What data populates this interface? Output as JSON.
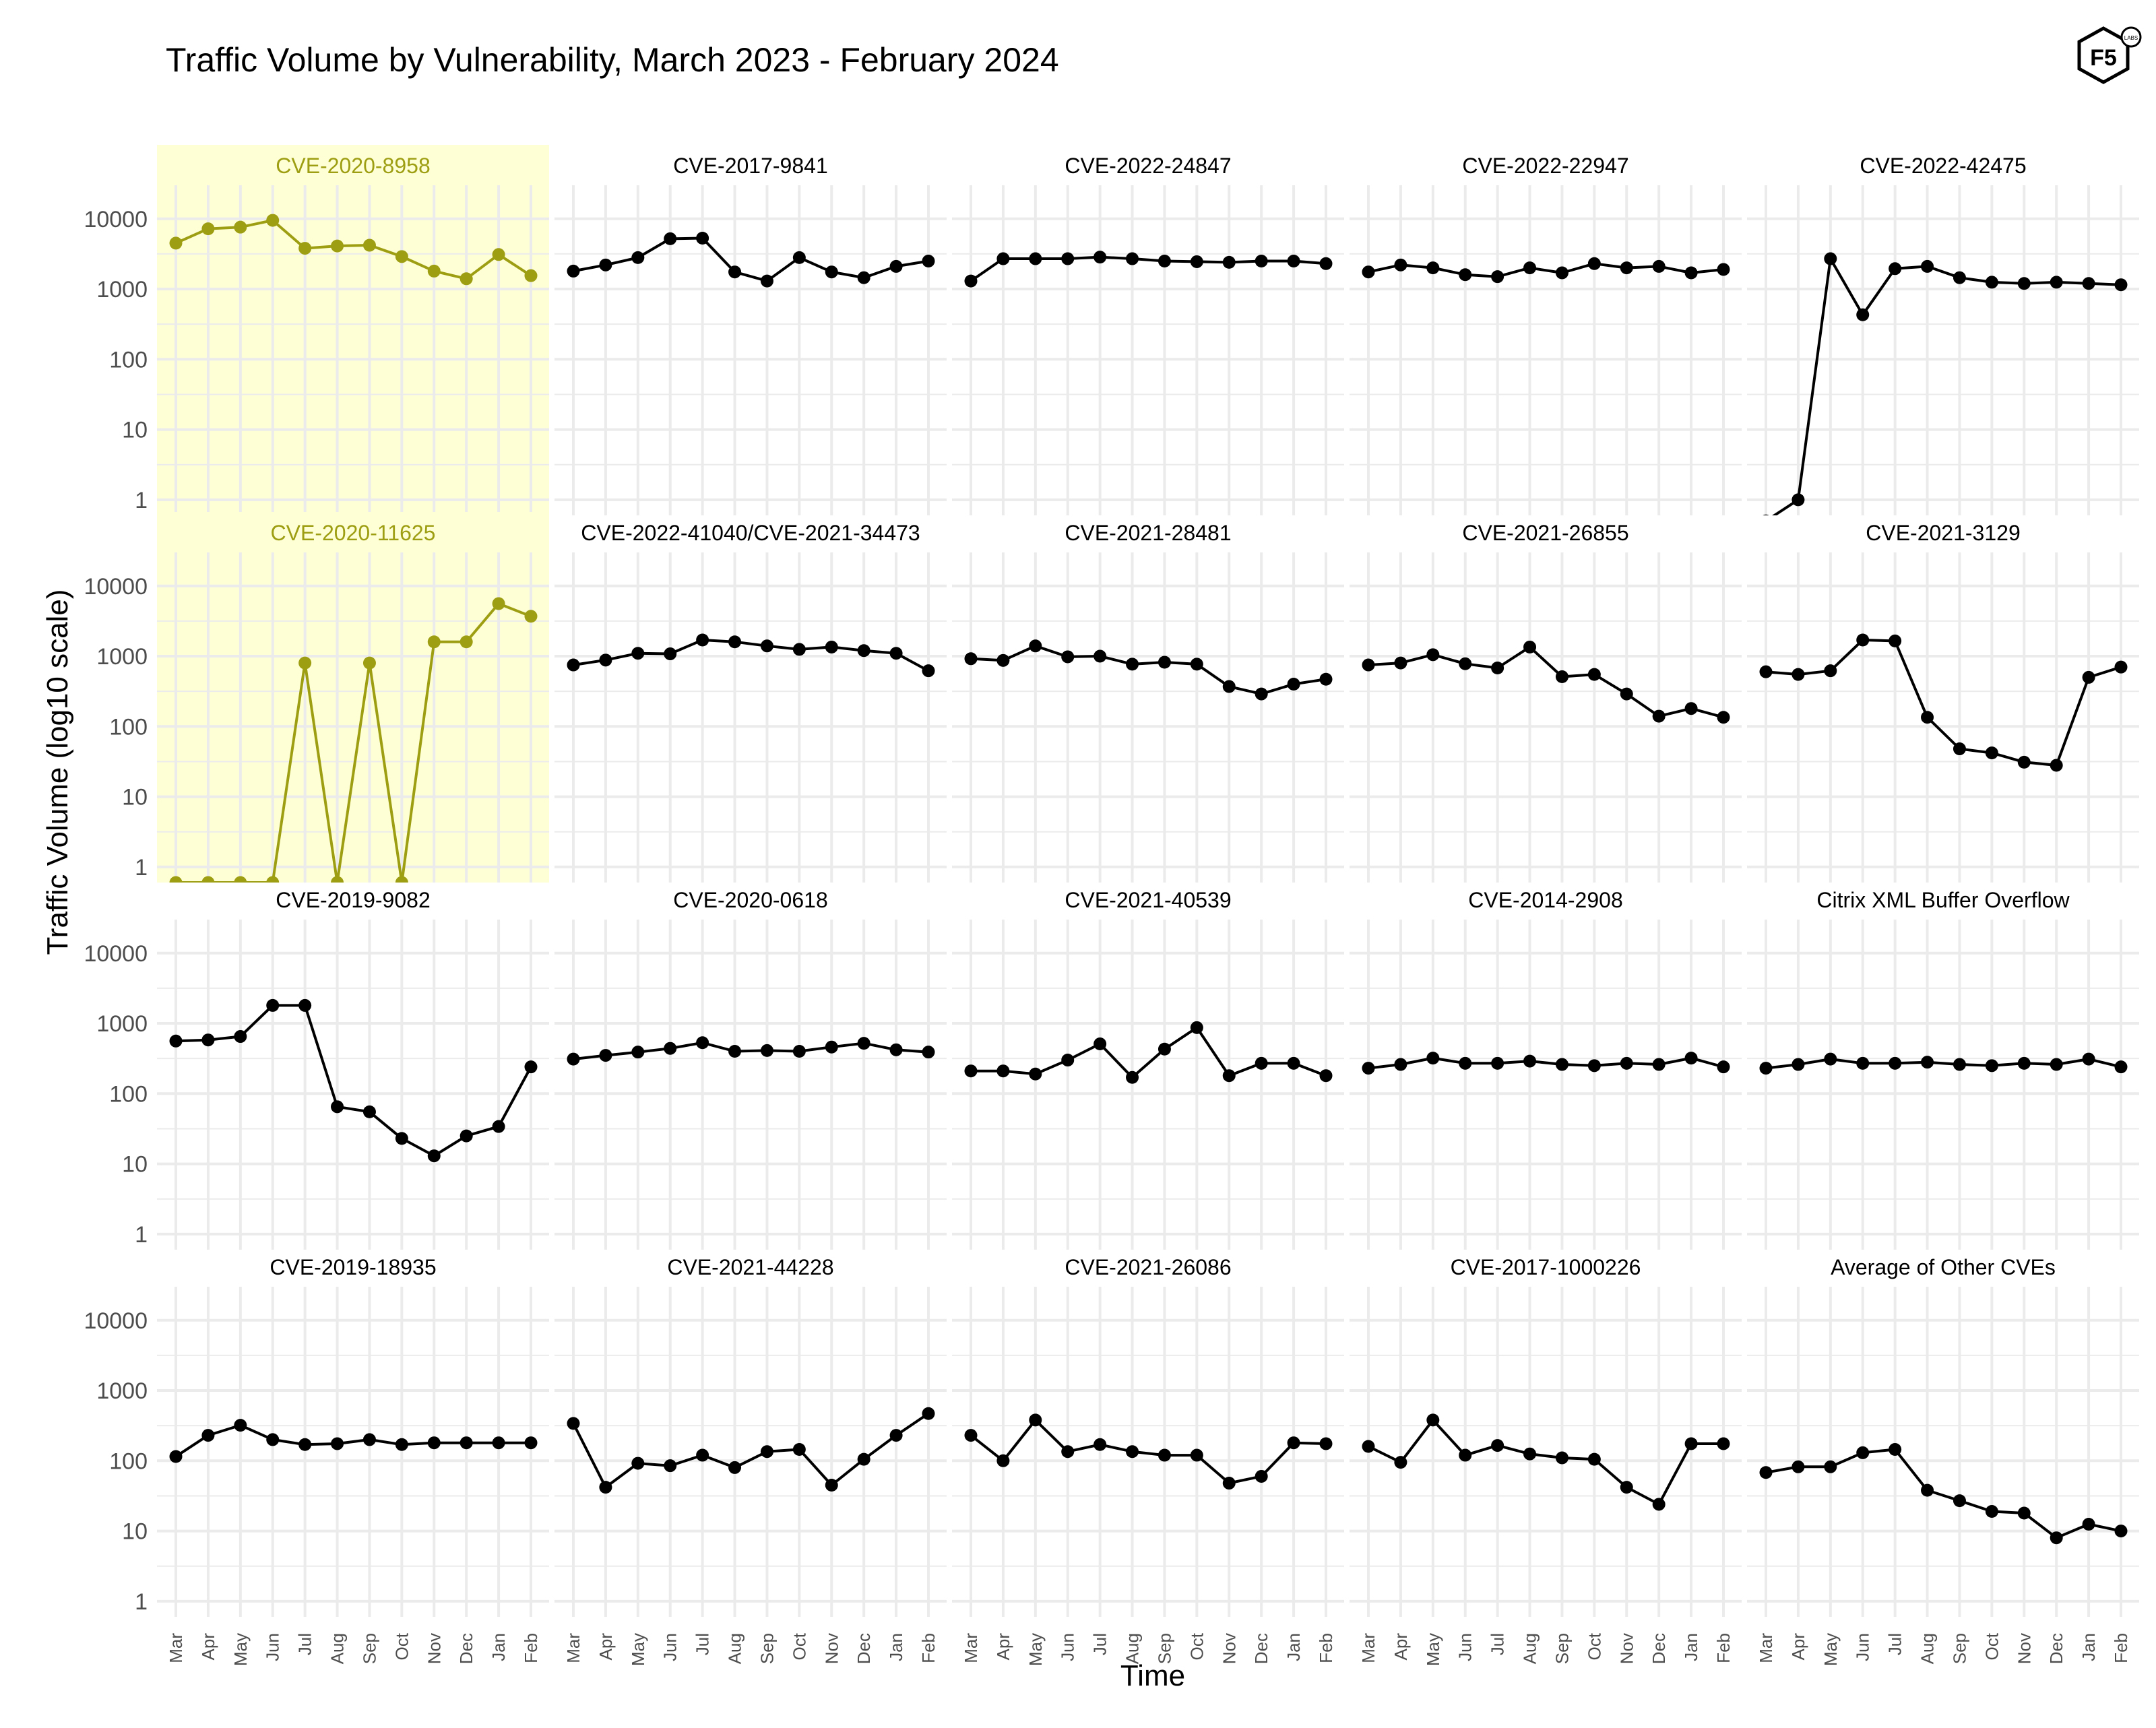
{
  "chart_data": {
    "type": "line",
    "title": "Traffic Volume by Vulnerability, March 2023 - February 2024",
    "xlabel": "Time",
    "ylabel": "Traffic Volume (log10 scale)",
    "y_scale": "log10",
    "ylim": [
      0.6,
      30000
    ],
    "y_ticks": [
      1,
      10,
      100,
      1000,
      10000
    ],
    "y_tick_labels": [
      "1",
      "10",
      "100",
      "1000",
      "10000"
    ],
    "categories": [
      "Mar",
      "Apr",
      "May",
      "Jun",
      "Jul",
      "Aug",
      "Sep",
      "Oct",
      "Nov",
      "Dec",
      "Jan",
      "Feb"
    ],
    "grid": true,
    "layout": "4 rows x 5 columns of panels, shared axes",
    "colors": {
      "default": "#000000",
      "highlight": "#9e9e13",
      "highlight_background": "#ffffd6",
      "grid": "#ebebeb"
    },
    "logo": {
      "text": "F5",
      "subtext": "LABS",
      "icon": "f5-labs-hexagon-logo"
    },
    "panels": [
      {
        "name": "CVE-2020-8958",
        "highlight": true,
        "values": [
          4500,
          7200,
          7600,
          9500,
          3800,
          4100,
          4200,
          2900,
          1800,
          1400,
          3100,
          1550
        ]
      },
      {
        "name": "CVE-2017-9841",
        "highlight": false,
        "values": [
          1800,
          2200,
          2800,
          5200,
          5300,
          1750,
          1300,
          2800,
          1750,
          1450,
          2100,
          2500
        ]
      },
      {
        "name": "CVE-2022-24847",
        "highlight": false,
        "values": [
          1300,
          2700,
          2700,
          2700,
          2850,
          2700,
          2500,
          2450,
          2400,
          2500,
          2500,
          2300
        ]
      },
      {
        "name": "CVE-2022-22947",
        "highlight": false,
        "values": [
          1750,
          2200,
          2000,
          1600,
          1500,
          2000,
          1700,
          2300,
          2000,
          2100,
          1700,
          1900
        ]
      },
      {
        "name": "CVE-2022-42475",
        "highlight": false,
        "values": [
          0.5,
          1,
          2700,
          430,
          1950,
          2100,
          1450,
          1250,
          1200,
          1250,
          1200,
          1150
        ]
      },
      {
        "name": "CVE-2020-11625",
        "highlight": true,
        "values": [
          0.6,
          0.6,
          0.6,
          0.6,
          800,
          0.6,
          800,
          0.6,
          1600,
          1600,
          5600,
          3700
        ]
      },
      {
        "name": "CVE-2022-41040/CVE-2021-34473",
        "highlight": false,
        "values": [
          750,
          880,
          1100,
          1080,
          1700,
          1600,
          1400,
          1250,
          1350,
          1200,
          1100,
          620
        ]
      },
      {
        "name": "CVE-2021-28481",
        "highlight": false,
        "values": [
          920,
          870,
          1400,
          980,
          1000,
          770,
          820,
          770,
          370,
          290,
          400,
          470
        ]
      },
      {
        "name": "CVE-2021-26855",
        "highlight": false,
        "values": [
          750,
          800,
          1050,
          780,
          680,
          1350,
          510,
          550,
          290,
          140,
          180,
          135
        ]
      },
      {
        "name": "CVE-2021-3129",
        "highlight": false,
        "values": [
          600,
          550,
          620,
          1700,
          1650,
          135,
          48,
          42,
          31,
          28,
          500,
          700
        ]
      },
      {
        "name": "CVE-2019-9082",
        "highlight": false,
        "values": [
          560,
          580,
          650,
          1800,
          1800,
          65,
          55,
          23,
          13,
          25,
          34,
          240
        ]
      },
      {
        "name": "CVE-2020-0618",
        "highlight": false,
        "values": [
          310,
          350,
          390,
          440,
          530,
          400,
          410,
          400,
          460,
          520,
          420,
          390
        ]
      },
      {
        "name": "CVE-2021-40539",
        "highlight": false,
        "values": [
          210,
          210,
          190,
          300,
          510,
          170,
          430,
          870,
          180,
          270,
          270,
          180
        ]
      },
      {
        "name": "CVE-2014-2908",
        "highlight": false,
        "values": [
          230,
          260,
          320,
          270,
          270,
          290,
          260,
          250,
          270,
          260,
          320,
          240
        ]
      },
      {
        "name": "Citrix XML Buffer Overflow",
        "highlight": false,
        "values": [
          230,
          260,
          310,
          270,
          270,
          280,
          260,
          250,
          270,
          260,
          310,
          240
        ]
      },
      {
        "name": "CVE-2019-18935",
        "highlight": false,
        "values": [
          115,
          230,
          320,
          200,
          170,
          175,
          200,
          170,
          180,
          180,
          180,
          180
        ]
      },
      {
        "name": "CVE-2021-44228",
        "highlight": false,
        "values": [
          340,
          42,
          92,
          85,
          120,
          80,
          135,
          145,
          45,
          105,
          230,
          470
        ]
      },
      {
        "name": "CVE-2021-26086",
        "highlight": false,
        "values": [
          230,
          100,
          380,
          135,
          170,
          135,
          120,
          120,
          48,
          60,
          180,
          175
        ]
      },
      {
        "name": "CVE-2017-1000226",
        "highlight": false,
        "values": [
          160,
          95,
          380,
          120,
          165,
          125,
          110,
          105,
          42,
          24,
          175,
          175
        ]
      },
      {
        "name": "Average of Other CVEs",
        "highlight": false,
        "values": [
          68,
          82,
          82,
          130,
          145,
          38,
          27,
          19,
          18,
          8,
          12.5,
          10
        ]
      }
    ]
  }
}
